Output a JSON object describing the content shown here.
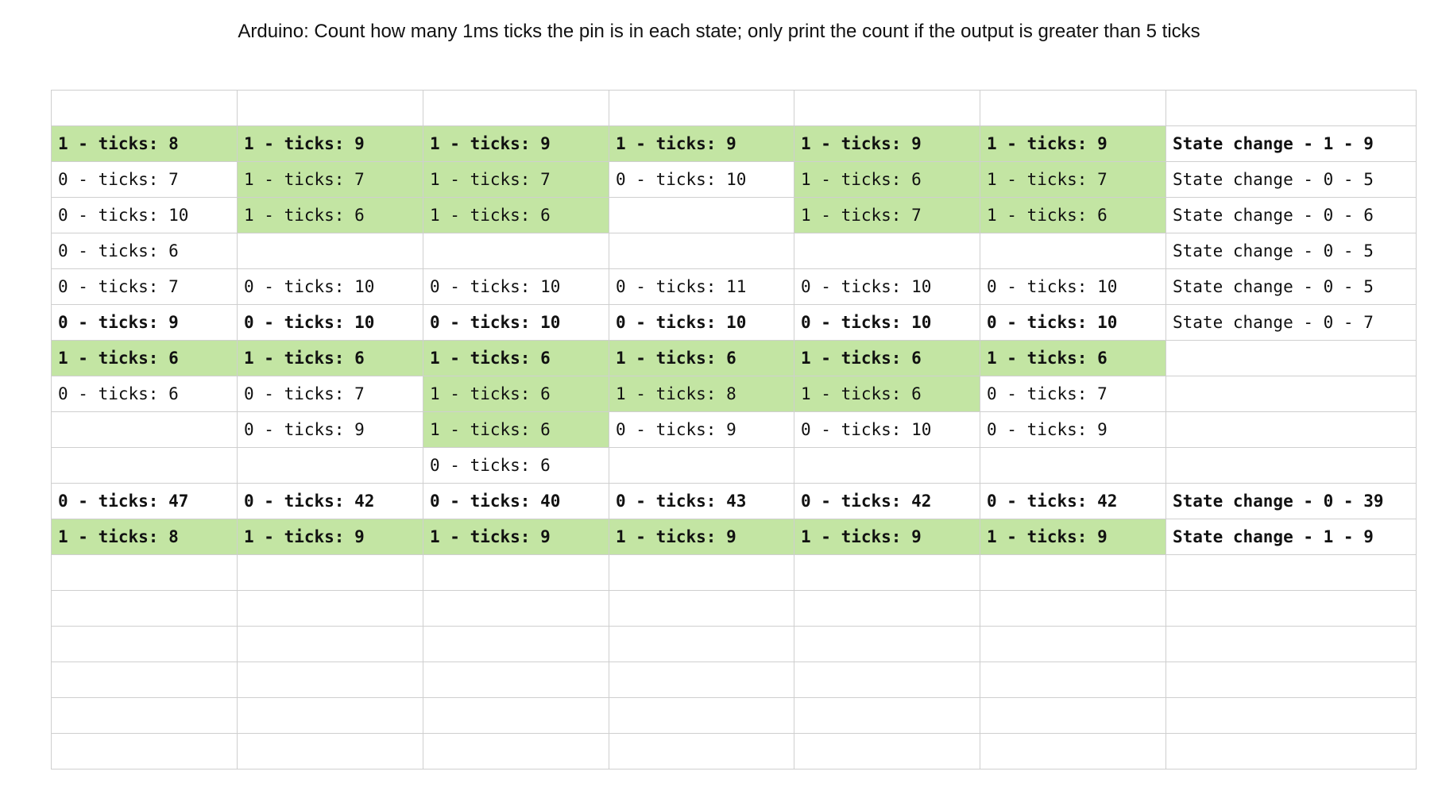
{
  "title": "Arduino: Count how many 1ms ticks the pin is in each state; only print the count if the output is greater than 5 ticks",
  "colors": {
    "highlight": "#c3e5a3",
    "grid": "#cfcfcf",
    "text": "#111111"
  },
  "table": {
    "columns": 7,
    "rows": [
      {
        "bold": false,
        "cells": [
          {
            "text": "",
            "hl": false
          },
          {
            "text": "",
            "hl": false
          },
          {
            "text": "",
            "hl": false
          },
          {
            "text": "",
            "hl": false
          },
          {
            "text": "",
            "hl": false
          },
          {
            "text": "",
            "hl": false
          },
          {
            "text": "",
            "hl": false
          }
        ]
      },
      {
        "bold": true,
        "cells": [
          {
            "text": "1 - ticks: 8",
            "hl": true
          },
          {
            "text": "1 - ticks: 9",
            "hl": true
          },
          {
            "text": "1 - ticks: 9",
            "hl": true
          },
          {
            "text": "1 - ticks: 9",
            "hl": true
          },
          {
            "text": "1 - ticks: 9",
            "hl": true
          },
          {
            "text": "1 - ticks: 9",
            "hl": true
          },
          {
            "text": "State change - 1 - 9",
            "hl": false
          }
        ]
      },
      {
        "bold": false,
        "cells": [
          {
            "text": "0 - ticks: 7",
            "hl": false
          },
          {
            "text": "1 - ticks: 7",
            "hl": true
          },
          {
            "text": "1 - ticks: 7",
            "hl": true
          },
          {
            "text": "0 - ticks: 10",
            "hl": false
          },
          {
            "text": "1 - ticks: 6",
            "hl": true
          },
          {
            "text": "1 - ticks: 7",
            "hl": true
          },
          {
            "text": "State change - 0 - 5",
            "hl": false
          }
        ]
      },
      {
        "bold": false,
        "cells": [
          {
            "text": "0 - ticks: 10",
            "hl": false
          },
          {
            "text": "1 - ticks: 6",
            "hl": true
          },
          {
            "text": "1 - ticks: 6",
            "hl": true
          },
          {
            "text": "",
            "hl": false
          },
          {
            "text": "1 - ticks: 7",
            "hl": true
          },
          {
            "text": "1 - ticks: 6",
            "hl": true
          },
          {
            "text": "State change - 0 - 6",
            "hl": false
          }
        ]
      },
      {
        "bold": false,
        "cells": [
          {
            "text": "0 - ticks: 6",
            "hl": false
          },
          {
            "text": "",
            "hl": false
          },
          {
            "text": "",
            "hl": false
          },
          {
            "text": "",
            "hl": false
          },
          {
            "text": "",
            "hl": false
          },
          {
            "text": "",
            "hl": false
          },
          {
            "text": "State change - 0 - 5",
            "hl": false
          }
        ]
      },
      {
        "bold": false,
        "cells": [
          {
            "text": "0 - ticks: 7",
            "hl": false
          },
          {
            "text": "0 - ticks: 10",
            "hl": false
          },
          {
            "text": "0 - ticks: 10",
            "hl": false
          },
          {
            "text": "0 - ticks: 11",
            "hl": false
          },
          {
            "text": "0 - ticks: 10",
            "hl": false
          },
          {
            "text": "0 - ticks: 10",
            "hl": false
          },
          {
            "text": "State change - 0 - 5",
            "hl": false
          }
        ]
      },
      {
        "bold": true,
        "cells": [
          {
            "text": "0 - ticks: 9",
            "hl": false
          },
          {
            "text": "0 - ticks: 10",
            "hl": false
          },
          {
            "text": "0 - ticks: 10",
            "hl": false
          },
          {
            "text": "0 - ticks: 10",
            "hl": false
          },
          {
            "text": "0 - ticks: 10",
            "hl": false
          },
          {
            "text": "0 - ticks: 10",
            "hl": false
          },
          {
            "text": "State change - 0 - 7",
            "hl": false,
            "normal": true
          }
        ]
      },
      {
        "bold": true,
        "cells": [
          {
            "text": "1 - ticks: 6",
            "hl": true
          },
          {
            "text": "1 - ticks: 6",
            "hl": true
          },
          {
            "text": "1 - ticks: 6",
            "hl": true
          },
          {
            "text": "1 - ticks: 6",
            "hl": true
          },
          {
            "text": "1 - ticks: 6",
            "hl": true
          },
          {
            "text": "1 - ticks: 6",
            "hl": true
          },
          {
            "text": "",
            "hl": false
          }
        ]
      },
      {
        "bold": false,
        "cells": [
          {
            "text": "0 - ticks: 6",
            "hl": false
          },
          {
            "text": "0 - ticks: 7",
            "hl": false
          },
          {
            "text": "1 - ticks: 6",
            "hl": true
          },
          {
            "text": "1 - ticks: 8",
            "hl": true
          },
          {
            "text": "1 - ticks: 6",
            "hl": true
          },
          {
            "text": "0 - ticks: 7",
            "hl": false
          },
          {
            "text": "",
            "hl": false
          }
        ]
      },
      {
        "bold": false,
        "cells": [
          {
            "text": "",
            "hl": false
          },
          {
            "text": "0 - ticks: 9",
            "hl": false
          },
          {
            "text": "1 - ticks: 6",
            "hl": true
          },
          {
            "text": "0 - ticks: 9",
            "hl": false
          },
          {
            "text": "0 - ticks: 10",
            "hl": false
          },
          {
            "text": "0 - ticks: 9",
            "hl": false
          },
          {
            "text": "",
            "hl": false
          }
        ]
      },
      {
        "bold": false,
        "cells": [
          {
            "text": "",
            "hl": false
          },
          {
            "text": "",
            "hl": false
          },
          {
            "text": "0 - ticks: 6",
            "hl": false
          },
          {
            "text": "",
            "hl": false
          },
          {
            "text": "",
            "hl": false
          },
          {
            "text": "",
            "hl": false
          },
          {
            "text": "",
            "hl": false
          }
        ]
      },
      {
        "bold": true,
        "cells": [
          {
            "text": "0 - ticks: 47",
            "hl": false
          },
          {
            "text": "0 - ticks: 42",
            "hl": false
          },
          {
            "text": "0 - ticks: 40",
            "hl": false
          },
          {
            "text": "0 - ticks: 43",
            "hl": false
          },
          {
            "text": "0 - ticks: 42",
            "hl": false
          },
          {
            "text": "0 - ticks: 42",
            "hl": false
          },
          {
            "text": "State change - 0 - 39",
            "hl": false
          }
        ]
      },
      {
        "bold": true,
        "cells": [
          {
            "text": "1 - ticks: 8",
            "hl": true
          },
          {
            "text": "1 - ticks: 9",
            "hl": true
          },
          {
            "text": "1 - ticks: 9",
            "hl": true
          },
          {
            "text": "1 - ticks: 9",
            "hl": true
          },
          {
            "text": "1 - ticks: 9",
            "hl": true
          },
          {
            "text": "1 - ticks: 9",
            "hl": true
          },
          {
            "text": "State change - 1 - 9",
            "hl": false
          }
        ]
      },
      {
        "bold": false,
        "cells": [
          {
            "text": "",
            "hl": false
          },
          {
            "text": "",
            "hl": false
          },
          {
            "text": "",
            "hl": false
          },
          {
            "text": "",
            "hl": false
          },
          {
            "text": "",
            "hl": false
          },
          {
            "text": "",
            "hl": false
          },
          {
            "text": "",
            "hl": false
          }
        ]
      },
      {
        "bold": false,
        "cells": [
          {
            "text": "",
            "hl": false
          },
          {
            "text": "",
            "hl": false
          },
          {
            "text": "",
            "hl": false
          },
          {
            "text": "",
            "hl": false
          },
          {
            "text": "",
            "hl": false
          },
          {
            "text": "",
            "hl": false
          },
          {
            "text": "",
            "hl": false
          }
        ]
      },
      {
        "bold": false,
        "cells": [
          {
            "text": "",
            "hl": false
          },
          {
            "text": "",
            "hl": false
          },
          {
            "text": "",
            "hl": false
          },
          {
            "text": "",
            "hl": false
          },
          {
            "text": "",
            "hl": false
          },
          {
            "text": "",
            "hl": false
          },
          {
            "text": "",
            "hl": false
          }
        ]
      },
      {
        "bold": false,
        "cells": [
          {
            "text": "",
            "hl": false
          },
          {
            "text": "",
            "hl": false
          },
          {
            "text": "",
            "hl": false
          },
          {
            "text": "",
            "hl": false
          },
          {
            "text": "",
            "hl": false
          },
          {
            "text": "",
            "hl": false
          },
          {
            "text": "",
            "hl": false
          }
        ]
      },
      {
        "bold": false,
        "cells": [
          {
            "text": "",
            "hl": false
          },
          {
            "text": "",
            "hl": false
          },
          {
            "text": "",
            "hl": false
          },
          {
            "text": "",
            "hl": false
          },
          {
            "text": "",
            "hl": false
          },
          {
            "text": "",
            "hl": false
          },
          {
            "text": "",
            "hl": false
          }
        ]
      },
      {
        "bold": false,
        "cells": [
          {
            "text": "",
            "hl": false
          },
          {
            "text": "",
            "hl": false
          },
          {
            "text": "",
            "hl": false
          },
          {
            "text": "",
            "hl": false
          },
          {
            "text": "",
            "hl": false
          },
          {
            "text": "",
            "hl": false
          },
          {
            "text": "",
            "hl": false
          }
        ]
      }
    ]
  }
}
